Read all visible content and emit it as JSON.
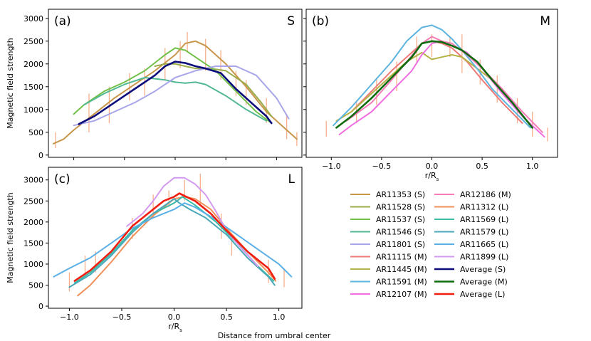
{
  "chart_data": {
    "type": "line",
    "title": "",
    "shared_xlabel": "Distance from umbral center",
    "panels": [
      {
        "id": "a",
        "label": "(a)",
        "group": "S",
        "xlabel": "",
        "ylabel": "Magnetic field strength",
        "xlim": [
          -1.25,
          1.25
        ],
        "ylim": [
          -50,
          3200
        ],
        "xticks": [
          -1.0,
          -0.5,
          0.0,
          0.5,
          1.0
        ],
        "xtick_labels": [
          "",
          "",
          "",
          "",
          ""
        ],
        "yticks": [
          0,
          500,
          1000,
          1500,
          2000,
          2500,
          3000
        ],
        "ytick_labels": [
          "0",
          "500",
          "1000",
          "1500",
          "2000",
          "2500",
          "3000"
        ],
        "series": [
          {
            "name": "AR11353 (S)",
            "color": "#c8964a",
            "x": [
              -1.2,
              -1.1,
              -1.0,
              -0.8,
              -0.6,
              -0.4,
              -0.2,
              0.0,
              0.1,
              0.2,
              0.3,
              0.5,
              0.7,
              0.9,
              1.1,
              1.2
            ],
            "values": [
              250,
              350,
              550,
              900,
              1250,
              1550,
              1850,
              2200,
              2450,
              2500,
              2400,
              2000,
              1500,
              950,
              550,
              350
            ]
          },
          {
            "name": "AR11528 (S)",
            "color": "#9aad4a",
            "x": [
              -0.2,
              -0.1,
              0.0,
              0.1,
              0.2,
              0.35,
              0.5,
              0.7,
              0.85,
              0.95
            ],
            "values": [
              1950,
              2000,
              2000,
              1950,
              1900,
              1900,
              1850,
              1550,
              1150,
              850
            ]
          },
          {
            "name": "AR11537 (S)",
            "color": "#72c04a",
            "x": [
              -1.0,
              -0.9,
              -0.7,
              -0.5,
              -0.3,
              -0.1,
              0.0,
              0.1,
              0.2,
              0.4,
              0.6,
              0.8,
              0.95
            ],
            "values": [
              900,
              1100,
              1400,
              1600,
              1850,
              2200,
              2350,
              2300,
              2150,
              1850,
              1400,
              950,
              700
            ]
          },
          {
            "name": "AR11546 (S)",
            "color": "#52b892",
            "x": [
              -0.9,
              -0.7,
              -0.5,
              -0.3,
              -0.1,
              0.0,
              0.1,
              0.2,
              0.3,
              0.5,
              0.7,
              0.9
            ],
            "values": [
              1100,
              1350,
              1550,
              1700,
              1650,
              1600,
              1580,
              1600,
              1550,
              1300,
              1000,
              750
            ]
          },
          {
            "name": "AR11801 (S)",
            "color": "#a8a6e8",
            "x": [
              -1.0,
              -0.8,
              -0.6,
              -0.4,
              -0.2,
              0.0,
              0.2,
              0.4,
              0.6,
              0.8,
              1.0,
              1.12
            ],
            "values": [
              650,
              750,
              950,
              1150,
              1400,
              1700,
              1850,
              1950,
              1950,
              1750,
              1250,
              800
            ]
          }
        ],
        "average": {
          "name": "Average (S)",
          "color": "#0c0c7a",
          "x": [
            -0.95,
            -0.8,
            -0.6,
            -0.4,
            -0.2,
            -0.1,
            0.0,
            0.1,
            0.2,
            0.3,
            0.45,
            0.6,
            0.75,
            0.9,
            0.95
          ],
          "values": [
            680,
            850,
            1150,
            1450,
            1750,
            1950,
            2050,
            2020,
            1950,
            1900,
            1800,
            1450,
            1150,
            850,
            700
          ]
        },
        "errorbars": [
          {
            "x": -1.18,
            "low": 150,
            "high": 500
          },
          {
            "x": -0.85,
            "low": 500,
            "high": 1350
          },
          {
            "x": -0.65,
            "low": 700,
            "high": 1500
          },
          {
            "x": -0.45,
            "low": 1200,
            "high": 1800
          },
          {
            "x": -0.3,
            "low": 1300,
            "high": 1900
          },
          {
            "x": -0.1,
            "low": 1650,
            "high": 2350
          },
          {
            "x": 0.05,
            "low": 1900,
            "high": 2500
          },
          {
            "x": 0.12,
            "low": 2250,
            "high": 2700
          },
          {
            "x": 0.3,
            "low": 1850,
            "high": 2550
          },
          {
            "x": 0.45,
            "low": 1650,
            "high": 2300
          },
          {
            "x": 0.6,
            "low": 1300,
            "high": 1850
          },
          {
            "x": 0.7,
            "low": 1100,
            "high": 1650
          },
          {
            "x": 0.9,
            "low": 700,
            "high": 1250
          },
          {
            "x": 1.1,
            "low": 350,
            "high": 900
          },
          {
            "x": 1.2,
            "low": 200,
            "high": 500
          }
        ]
      },
      {
        "id": "b",
        "label": "(b)",
        "group": "M",
        "xlabel": "r/R",
        "xlabel_sub": "s",
        "ylabel": "",
        "xlim": [
          -1.25,
          1.25
        ],
        "ylim": [
          -50,
          3200
        ],
        "xticks": [
          -1.0,
          -0.5,
          0.0,
          0.5,
          1.0
        ],
        "xtick_labels": [
          "−1.0",
          "−0.5",
          "0.0",
          "0.5",
          "1.0"
        ],
        "yticks": [
          0,
          500,
          1000,
          1500,
          2000,
          2500,
          3000
        ],
        "ytick_labels": [
          "",
          "",
          "",
          "",
          "",
          "",
          ""
        ],
        "series": [
          {
            "name": "AR11115 (M)",
            "color": "#ee7a7a",
            "x": [
              -0.8,
              -0.6,
              -0.4,
              -0.2,
              -0.1,
              0.0,
              0.1,
              0.2,
              0.35,
              0.5,
              0.7,
              0.9
            ],
            "values": [
              950,
              1400,
              1850,
              2250,
              2450,
              2500,
              2450,
              2350,
              2050,
              1650,
              1150,
              700
            ]
          },
          {
            "name": "AR11445 (M)",
            "color": "#b5b246",
            "x": [
              -0.95,
              -0.8,
              -0.6,
              -0.4,
              -0.25,
              -0.1,
              0.0,
              0.1,
              0.2,
              0.3,
              0.45,
              0.6
            ],
            "values": [
              750,
              950,
              1350,
              1750,
              2050,
              2250,
              2100,
              2150,
              2200,
              2150,
              1900,
              1650
            ]
          },
          {
            "name": "AR11591 (M)",
            "color": "#5db4de",
            "x": [
              -0.98,
              -0.8,
              -0.6,
              -0.4,
              -0.25,
              -0.1,
              0.0,
              0.1,
              0.2,
              0.3,
              0.45,
              0.6,
              0.8,
              0.98
            ],
            "values": [
              650,
              1050,
              1550,
              2050,
              2500,
              2800,
              2850,
              2750,
              2550,
              2300,
              1900,
              1450,
              1000,
              600
            ]
          },
          {
            "name": "AR12107 (M)",
            "color": "#f06ee0",
            "x": [
              -0.92,
              -0.8,
              -0.6,
              -0.4,
              -0.2,
              -0.1,
              0.0,
              0.1,
              0.2,
              0.35,
              0.5,
              0.7,
              0.9,
              1.12
            ],
            "values": [
              450,
              650,
              950,
              1400,
              1850,
              2200,
              2450,
              2500,
              2400,
              2250,
              1900,
              1350,
              850,
              400
            ]
          },
          {
            "name": "AR12186 (M)",
            "color": "#f57cb6",
            "x": [
              -0.85,
              -0.6,
              -0.4,
              -0.25,
              -0.1,
              0.0,
              0.1,
              0.2,
              0.35,
              0.5,
              0.7,
              0.9,
              1.1
            ],
            "values": [
              750,
              1150,
              1650,
              2050,
              2450,
              2600,
              2500,
              2450,
              2200,
              1900,
              1450,
              950,
              500
            ]
          }
        ],
        "average": {
          "name": "Average (M)",
          "color": "#0e6b0e",
          "x": [
            -0.95,
            -0.8,
            -0.6,
            -0.4,
            -0.2,
            -0.1,
            0.0,
            0.1,
            0.2,
            0.3,
            0.45,
            0.6,
            0.8,
            1.0
          ],
          "values": [
            600,
            850,
            1250,
            1700,
            2150,
            2450,
            2500,
            2480,
            2400,
            2300,
            2050,
            1650,
            1150,
            600
          ]
        },
        "errorbars": [
          {
            "x": -1.05,
            "low": 400,
            "high": 750
          },
          {
            "x": -0.75,
            "low": 700,
            "high": 1200
          },
          {
            "x": -0.55,
            "low": 1100,
            "high": 1700
          },
          {
            "x": -0.35,
            "low": 1400,
            "high": 2050
          },
          {
            "x": -0.15,
            "low": 2000,
            "high": 2600
          },
          {
            "x": 0.0,
            "low": 2150,
            "high": 2650
          },
          {
            "x": 0.18,
            "low": 2150,
            "high": 2600
          },
          {
            "x": 0.3,
            "low": 1800,
            "high": 2650
          },
          {
            "x": 0.48,
            "low": 1550,
            "high": 2100
          },
          {
            "x": 0.65,
            "low": 1150,
            "high": 1750
          },
          {
            "x": 0.85,
            "low": 700,
            "high": 1250
          },
          {
            "x": 1.0,
            "low": 400,
            "high": 950
          },
          {
            "x": 1.15,
            "low": 300,
            "high": 600
          }
        ]
      },
      {
        "id": "c",
        "label": "(c)",
        "group": "L",
        "xlabel": "r/R",
        "xlabel_sub": "s",
        "ylabel": "Magnetic field strength",
        "xlim": [
          -1.2,
          1.22
        ],
        "ylim": [
          -50,
          3300
        ],
        "xticks": [
          -1.0,
          -0.5,
          0.0,
          0.5,
          1.0
        ],
        "xtick_labels": [
          "−1.0",
          "−0.5",
          "0.0",
          "0.5",
          "1.0"
        ],
        "yticks": [
          0,
          500,
          1000,
          1500,
          2000,
          2500,
          3000
        ],
        "ytick_labels": [
          "0",
          "500",
          "1000",
          "1500",
          "2000",
          "2500",
          "3000"
        ],
        "series": [
          {
            "name": "AR11312 (L)",
            "color": "#f0905a",
            "x": [
              -0.92,
              -0.8,
              -0.6,
              -0.4,
              -0.2,
              0.0,
              0.1,
              0.2,
              0.35,
              0.5,
              0.7,
              0.9,
              0.97
            ],
            "values": [
              250,
              500,
              1050,
              1650,
              2150,
              2550,
              2600,
              2550,
              2300,
              1850,
              1300,
              800,
              600
            ]
          },
          {
            "name": "AR11569 (L)",
            "color": "#3cbca6",
            "x": [
              -0.95,
              -0.8,
              -0.6,
              -0.4,
              -0.2,
              0.0,
              0.08,
              0.2,
              0.4,
              0.6,
              0.8,
              0.95
            ],
            "values": [
              550,
              800,
              1250,
              1800,
              2200,
              2450,
              2600,
              2400,
              2000,
              1500,
              950,
              600
            ]
          },
          {
            "name": "AR11579 (L)",
            "color": "#4aa8b8",
            "x": [
              -1.0,
              -0.8,
              -0.6,
              -0.4,
              -0.2,
              0.0,
              0.05,
              0.15,
              0.3,
              0.5,
              0.7,
              0.9,
              0.96
            ],
            "values": [
              450,
              750,
              1200,
              1750,
              2200,
              2550,
              2450,
              2300,
              2100,
              1700,
              1150,
              700,
              500
            ]
          },
          {
            "name": "AR11665 (L)",
            "color": "#5ab0e6",
            "x": [
              -1.15,
              -1.0,
              -0.8,
              -0.6,
              -0.4,
              -0.2,
              0.0,
              0.1,
              0.2,
              0.4,
              0.6,
              0.8,
              1.0,
              1.12
            ],
            "values": [
              700,
              900,
              1150,
              1500,
              1850,
              2100,
              2300,
              2450,
              2350,
              2050,
              1700,
              1350,
              1000,
              700
            ]
          },
          {
            "name": "AR11899 (L)",
            "color": "#d39af0",
            "x": [
              -0.45,
              -0.3,
              -0.2,
              -0.1,
              0.0,
              0.1,
              0.2,
              0.3,
              0.4,
              0.5,
              0.65,
              0.8
            ],
            "values": [
              1900,
              2200,
              2500,
              2850,
              3050,
              3050,
              2900,
              2650,
              2250,
              1800,
              1350,
              950
            ]
          }
        ],
        "average": {
          "name": "Average (L)",
          "color": "#f01e10",
          "x": [
            -0.95,
            -0.8,
            -0.6,
            -0.4,
            -0.2,
            -0.1,
            0.0,
            0.05,
            0.1,
            0.2,
            0.35,
            0.5,
            0.7,
            0.9,
            0.96
          ],
          "values": [
            600,
            850,
            1300,
            1900,
            2300,
            2500,
            2600,
            2680,
            2620,
            2500,
            2200,
            1800,
            1300,
            900,
            650
          ]
        },
        "errorbars": [
          {
            "x": -1.0,
            "low": 350,
            "high": 800
          },
          {
            "x": -0.85,
            "low": 650,
            "high": 1200
          },
          {
            "x": -0.75,
            "low": 800,
            "high": 1300
          },
          {
            "x": -0.4,
            "low": 1600,
            "high": 2100
          },
          {
            "x": -0.2,
            "low": 2100,
            "high": 2650
          },
          {
            "x": -0.05,
            "low": 2350,
            "high": 2750
          },
          {
            "x": 0.1,
            "low": 2500,
            "high": 3000
          },
          {
            "x": 0.25,
            "low": 2400,
            "high": 3150
          },
          {
            "x": 0.45,
            "low": 1600,
            "high": 2200
          },
          {
            "x": 0.55,
            "low": 1200,
            "high": 1700
          },
          {
            "x": 0.9,
            "low": 550,
            "high": 1100
          },
          {
            "x": 1.05,
            "low": 450,
            "high": 900
          }
        ]
      }
    ],
    "legend": {
      "placement": "lower-right",
      "columns": [
        [
          "AR11353 (S)",
          "AR11528 (S)",
          "AR11537 (S)",
          "AR11546 (S)",
          "AR11801 (S)",
          "AR11115 (M)",
          "AR11445 (M)",
          "AR11591 (M)",
          "AR12107 (M)"
        ],
        [
          "AR12186 (M)",
          "AR11312 (L)",
          "AR11569 (L)",
          "AR11579 (L)",
          "AR11665 (L)",
          "AR11899 (L)",
          "Average (S)",
          "Average (M)",
          "Average (L)"
        ]
      ]
    },
    "errorbar_color": "#f5a27a"
  }
}
